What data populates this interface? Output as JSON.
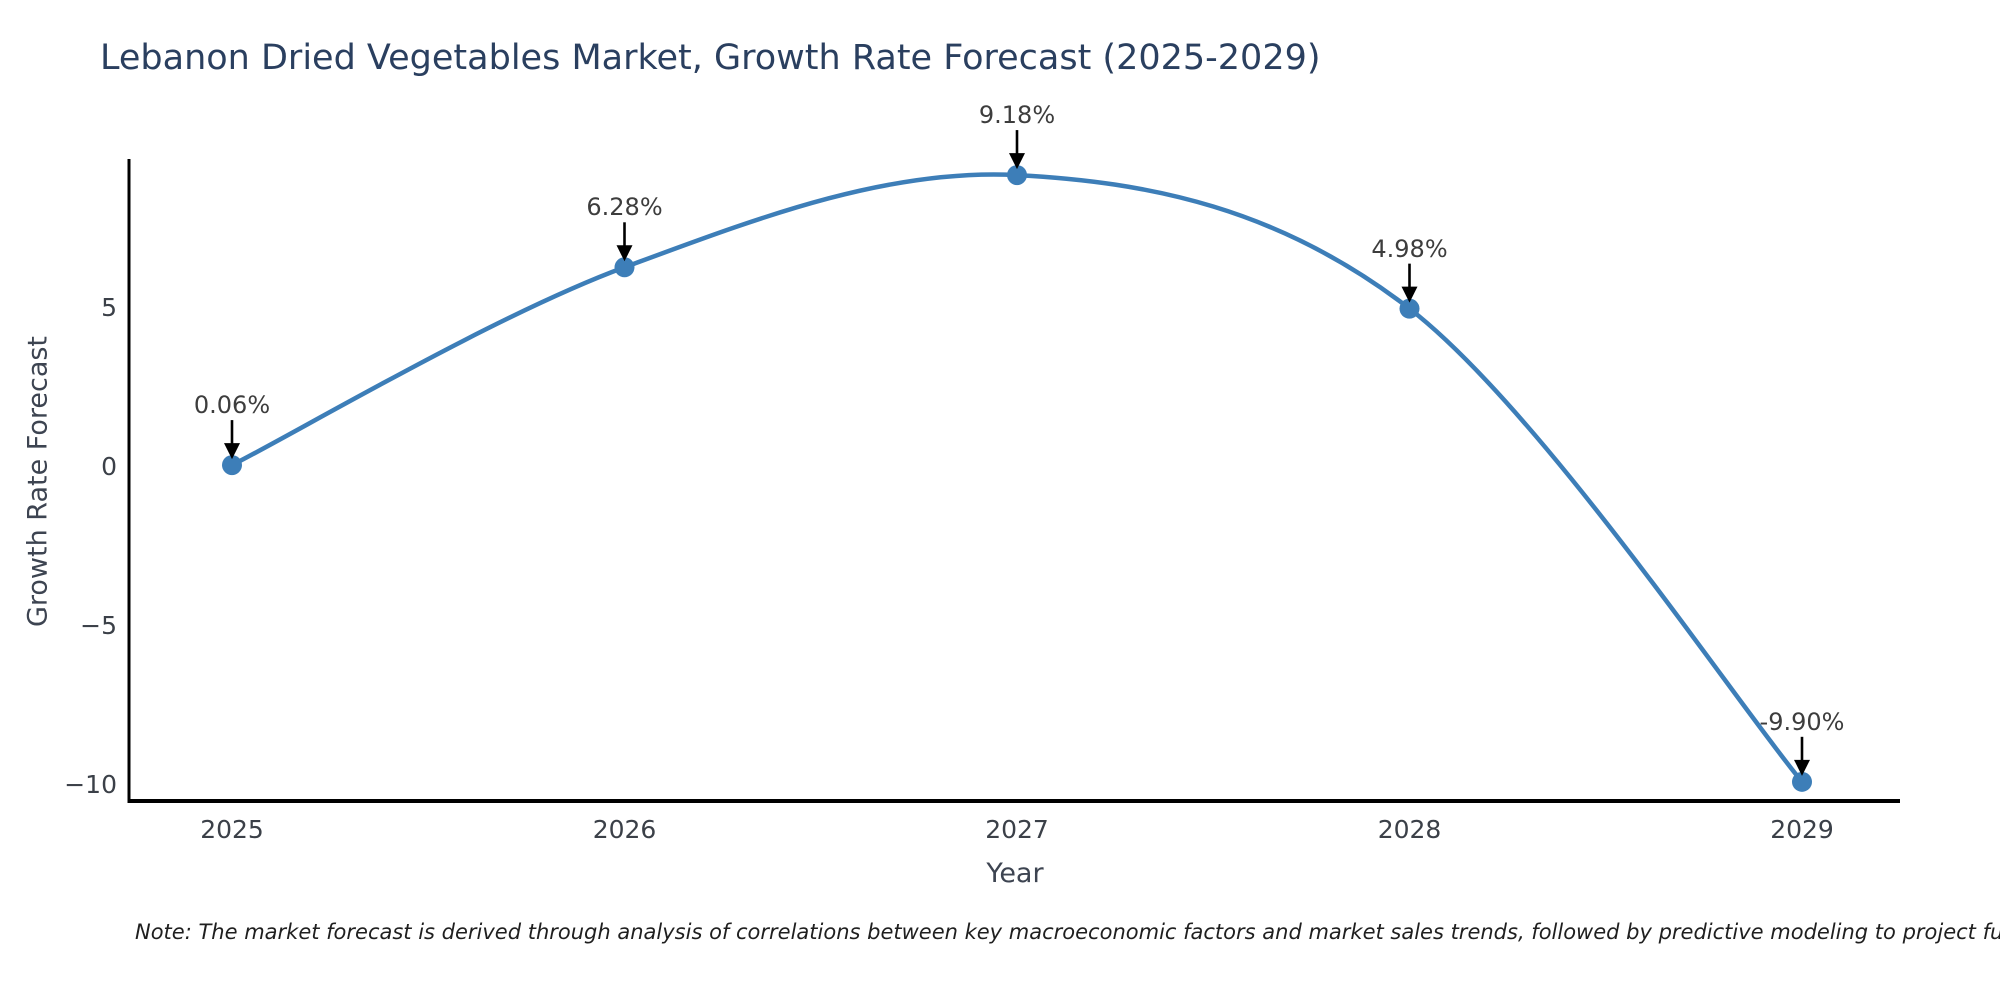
{
  "figure": {
    "note": "Note: The market forecast is derived through analysis of correlations between key macroeconomic factors and market sales trends, followed by predictive modeling to project future sales performance."
  },
  "chart_data": {
    "type": "line",
    "title": "Lebanon Dried Vegetables Market, Growth Rate Forecast (2025-2029)",
    "xlabel": "Year",
    "ylabel": "Growth Rate Forecast",
    "categories": [
      "2025",
      "2026",
      "2027",
      "2028",
      "2029"
    ],
    "values": [
      0.06,
      6.28,
      9.18,
      4.98,
      -9.9
    ],
    "point_labels": [
      "0.06%",
      "6.28%",
      "9.18%",
      "4.98%",
      "-9.90%"
    ],
    "yticks": [
      5,
      0,
      -5,
      -10
    ],
    "ylim": [
      -10.5,
      9.7
    ],
    "grid": false,
    "legend_position": "none",
    "line_shape": "spline",
    "line_color": "#3d7eb8",
    "marker_color": "#3d7eb8",
    "arrow_color": "#000000",
    "axis_color": "#000000",
    "title_color": "#2a3f5f",
    "tick_color": "#3b4048"
  }
}
